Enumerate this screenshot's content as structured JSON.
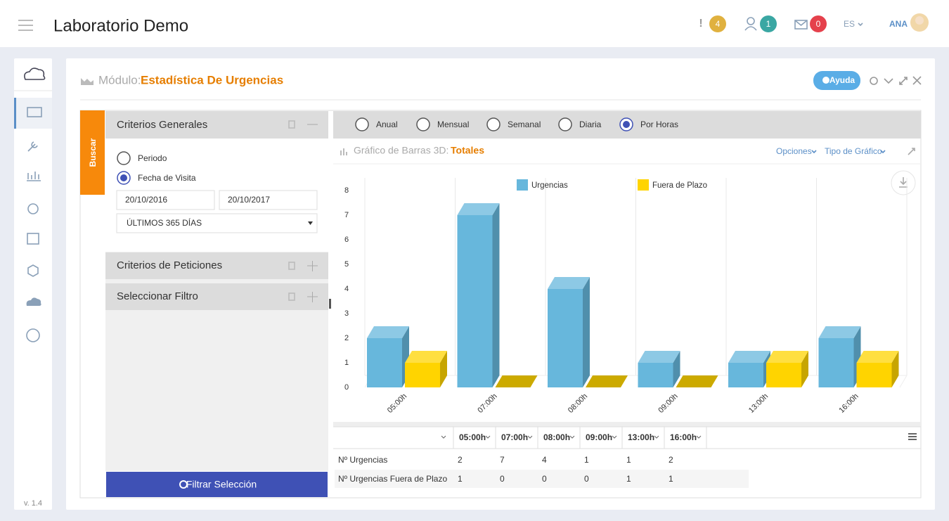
{
  "header": {
    "title": "Laboratorio Demo",
    "alerts": "4",
    "users": "1",
    "messages": "0",
    "language": "ES",
    "user": "ANA"
  },
  "sidebar": {
    "version": "v. 1.4"
  },
  "module": {
    "label": "Módulo:",
    "name": "Estadística De Urgencias",
    "help": "Ayuda"
  },
  "search_tab": "Buscar",
  "filters": {
    "general": {
      "title": "Criterios Generales",
      "options": [
        "Periodo",
        "Fecha de Visita"
      ],
      "date_from": "20/10/2016",
      "date_to": "20/10/2017",
      "range": "ÚLTIMOS 365 DÍAS"
    },
    "requests": "Criterios de Peticiones",
    "filter": "Seleccionar Filtro",
    "apply": "Filtrar Selección"
  },
  "periods": [
    "Anual",
    "Mensual",
    "Semanal",
    "Diaria",
    "Por Horas"
  ],
  "chart_header": {
    "label": "Gráfico de Barras 3D:",
    "name": "Totales",
    "options": "Opciones",
    "chart_type": "Tipo de Gráfico"
  },
  "chart_data": {
    "type": "bar",
    "categories": [
      "05:00h",
      "07:00h",
      "08:00h",
      "09:00h",
      "13:00h",
      "16:00h"
    ],
    "series": [
      {
        "name": "Urgencias",
        "color": "#67b7dc",
        "values": [
          2,
          7,
          4,
          1,
          1,
          2
        ]
      },
      {
        "name": "Fuera de Plazo",
        "color": "#ffd400",
        "values": [
          1,
          0,
          0,
          0,
          1,
          1
        ]
      }
    ],
    "ylim": [
      0,
      8
    ],
    "yticks": [
      0,
      1,
      2,
      3,
      4,
      5,
      6,
      7,
      8
    ]
  },
  "table": {
    "row_labels": [
      "Nº Urgencias",
      "Nº Urgencias Fuera de Plazo"
    ]
  }
}
